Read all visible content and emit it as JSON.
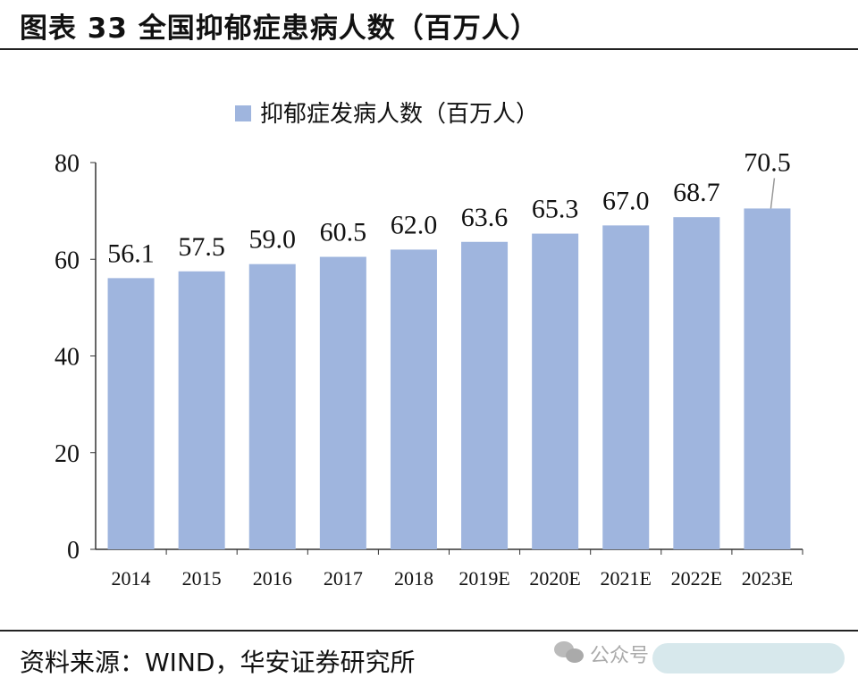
{
  "header": {
    "title": "图表 33 全国抑郁症患病人数（百万人）"
  },
  "footer": {
    "source": "资料来源：WIND，华安证券研究所",
    "watermark": "公众号"
  },
  "chart_data": {
    "type": "bar",
    "title": "",
    "categories": [
      "2014",
      "2015",
      "2016",
      "2017",
      "2018",
      "2019E",
      "2020E",
      "2021E",
      "2022E",
      "2023E"
    ],
    "series": [
      {
        "name": "抑郁症发病人数（百万人）",
        "values": [
          56.1,
          57.5,
          59.0,
          60.5,
          62.0,
          63.6,
          65.3,
          67.0,
          68.7,
          70.5
        ]
      }
    ],
    "data_labels": [
      "56.1",
      "57.5",
      "59.0",
      "60.5",
      "62.0",
      "63.6",
      "65.3",
      "67.0",
      "68.7",
      "70.5"
    ],
    "ylim": [
      0,
      80
    ],
    "yticks": [
      "0",
      "20",
      "40",
      "60",
      "80"
    ],
    "xlabel": "",
    "ylabel": "",
    "grid": false,
    "legend": "top",
    "bar_color": "#9fb5de"
  }
}
